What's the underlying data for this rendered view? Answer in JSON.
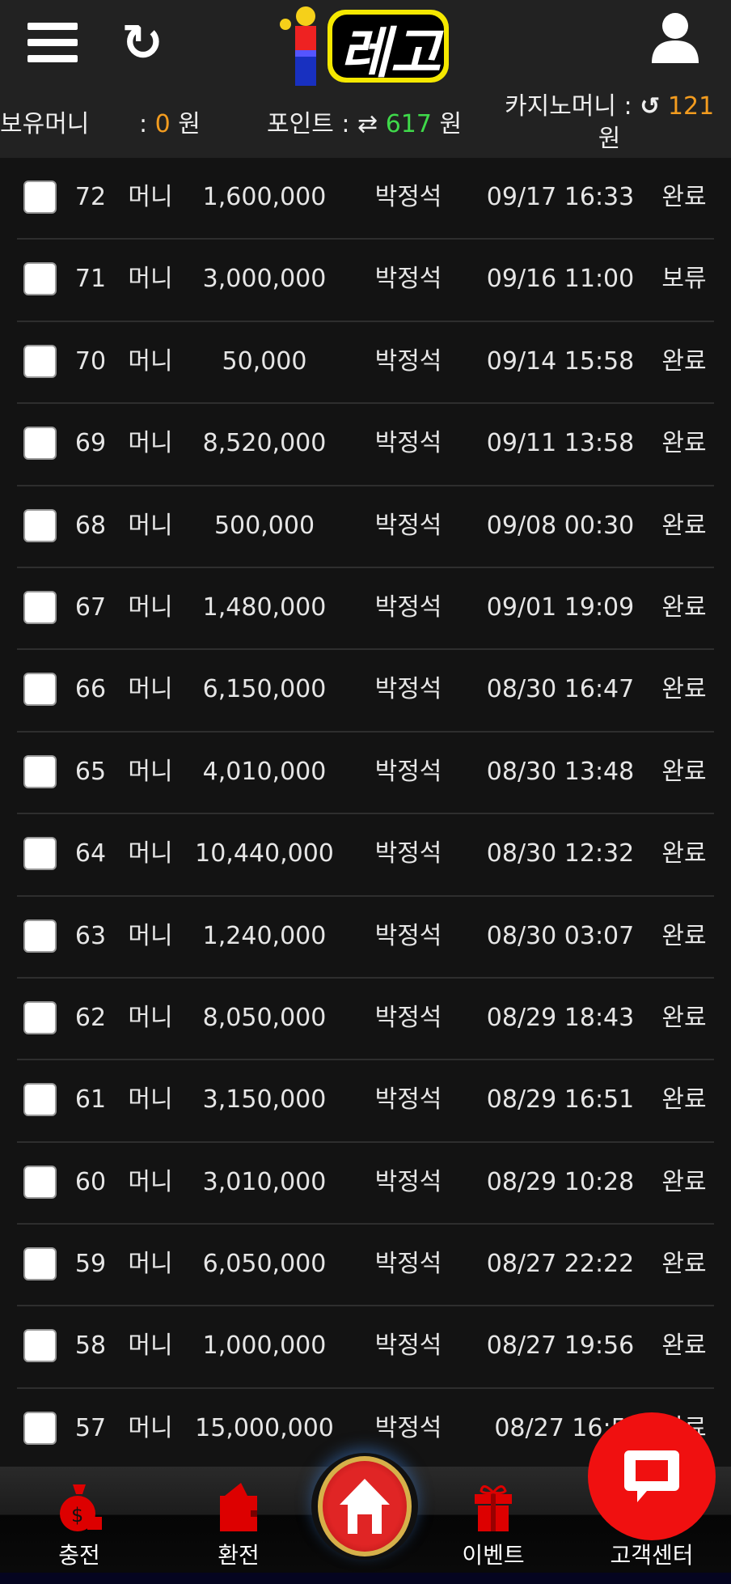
{
  "header": {
    "logo_text": "레고"
  },
  "stats": {
    "holding_label": "보유머니",
    "holding_sep": ":",
    "holding_value": "0",
    "holding_unit": "원",
    "point_label": "포인트 :",
    "point_value": "617",
    "point_unit": "원",
    "casino_label": "카지노머니 :",
    "casino_value": "121",
    "casino_unit": "원"
  },
  "rows": [
    {
      "no": "72",
      "type": "머니",
      "amount": "1,600,000",
      "name": "박정석",
      "date": "09/17 16:33",
      "status": "완료"
    },
    {
      "no": "71",
      "type": "머니",
      "amount": "3,000,000",
      "name": "박정석",
      "date": "09/16 11:00",
      "status": "보류"
    },
    {
      "no": "70",
      "type": "머니",
      "amount": "50,000",
      "name": "박정석",
      "date": "09/14 15:58",
      "status": "완료"
    },
    {
      "no": "69",
      "type": "머니",
      "amount": "8,520,000",
      "name": "박정석",
      "date": "09/11 13:58",
      "status": "완료"
    },
    {
      "no": "68",
      "type": "머니",
      "amount": "500,000",
      "name": "박정석",
      "date": "09/08 00:30",
      "status": "완료"
    },
    {
      "no": "67",
      "type": "머니",
      "amount": "1,480,000",
      "name": "박정석",
      "date": "09/01 19:09",
      "status": "완료"
    },
    {
      "no": "66",
      "type": "머니",
      "amount": "6,150,000",
      "name": "박정석",
      "date": "08/30 16:47",
      "status": "완료"
    },
    {
      "no": "65",
      "type": "머니",
      "amount": "4,010,000",
      "name": "박정석",
      "date": "08/30 13:48",
      "status": "완료"
    },
    {
      "no": "64",
      "type": "머니",
      "amount": "10,440,000",
      "name": "박정석",
      "date": "08/30 12:32",
      "status": "완료"
    },
    {
      "no": "63",
      "type": "머니",
      "amount": "1,240,000",
      "name": "박정석",
      "date": "08/30 03:07",
      "status": "완료"
    },
    {
      "no": "62",
      "type": "머니",
      "amount": "8,050,000",
      "name": "박정석",
      "date": "08/29 18:43",
      "status": "완료"
    },
    {
      "no": "61",
      "type": "머니",
      "amount": "3,150,000",
      "name": "박정석",
      "date": "08/29 16:51",
      "status": "완료"
    },
    {
      "no": "60",
      "type": "머니",
      "amount": "3,010,000",
      "name": "박정석",
      "date": "08/29 10:28",
      "status": "완료"
    },
    {
      "no": "59",
      "type": "머니",
      "amount": "6,050,000",
      "name": "박정석",
      "date": "08/27 22:22",
      "status": "완료"
    },
    {
      "no": "58",
      "type": "머니",
      "amount": "1,000,000",
      "name": "박정석",
      "date": "08/27 19:56",
      "status": "완료"
    },
    {
      "no": "57",
      "type": "머니",
      "amount": "15,000,000",
      "name": "박정석",
      "date": "08/27 16:5",
      "status": "완료"
    }
  ],
  "nav": {
    "charge": "충전",
    "exchange": "환전",
    "event": "이벤트",
    "support": "고객센터"
  },
  "colors": {
    "accent_orange": "#f39c1f",
    "accent_green": "#3fd94a",
    "nav_red": "#e00000",
    "chat_red": "#f01010"
  }
}
